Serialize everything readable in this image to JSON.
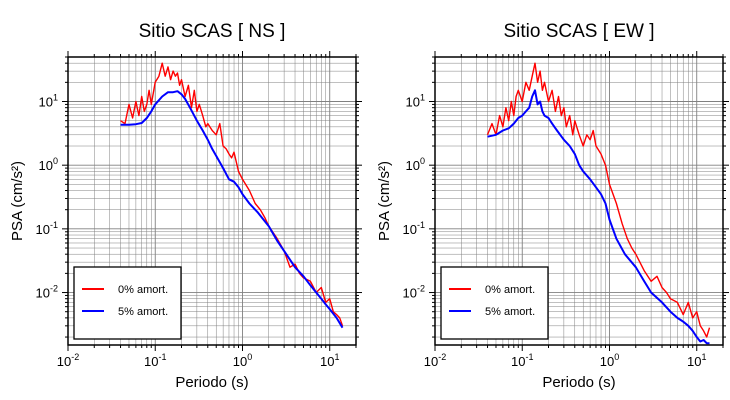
{
  "chart_data": [
    {
      "type": "line",
      "title": "Sitio SCAS [ NS ]",
      "xlabel": "Periodo (s)",
      "ylabel": "PSA (cm/s²)",
      "xscale": "log",
      "yscale": "log",
      "xlim": [
        0.01,
        20
      ],
      "ylim": [
        0.0015,
        50
      ],
      "xticks": [
        {
          "base": "10",
          "exp": "-2",
          "value": 0.01
        },
        {
          "base": "10",
          "exp": "-1",
          "value": 0.1
        },
        {
          "base": "10",
          "exp": "0",
          "value": 1
        },
        {
          "base": "10",
          "exp": "1",
          "value": 10
        }
      ],
      "yticks": [
        {
          "base": "10",
          "exp": "-2",
          "value": 0.01
        },
        {
          "base": "10",
          "exp": "-1",
          "value": 0.1
        },
        {
          "base": "10",
          "exp": "0",
          "value": 1
        },
        {
          "base": "10",
          "exp": "1",
          "value": 10
        }
      ],
      "grid": true,
      "legend_position": "bottom-left",
      "series": [
        {
          "name": "0% amort.",
          "color": "#ff0000",
          "x": [
            0.04,
            0.045,
            0.05,
            0.055,
            0.06,
            0.065,
            0.07,
            0.075,
            0.08,
            0.085,
            0.09,
            0.1,
            0.11,
            0.12,
            0.13,
            0.14,
            0.15,
            0.16,
            0.17,
            0.18,
            0.19,
            0.2,
            0.22,
            0.24,
            0.26,
            0.28,
            0.3,
            0.32,
            0.35,
            0.38,
            0.4,
            0.45,
            0.5,
            0.55,
            0.6,
            0.65,
            0.7,
            0.75,
            0.8,
            0.9,
            1.0,
            1.2,
            1.4,
            1.6,
            1.8,
            2.0,
            2.5,
            3.0,
            3.5,
            4.0,
            4.5,
            5.0,
            6.0,
            7.0,
            8.0,
            9.0,
            10.0,
            11.0,
            12.0,
            13.0,
            14.0
          ],
          "y": [
            5.0,
            4.5,
            9.0,
            5.5,
            10.0,
            6.0,
            12.0,
            7.0,
            9.0,
            15.0,
            9.0,
            20.0,
            25.0,
            40.0,
            25.0,
            35.0,
            22.0,
            30.0,
            25.0,
            28.0,
            18.0,
            22.0,
            12.0,
            18.0,
            8.0,
            15.0,
            7.0,
            9.0,
            6.0,
            4.0,
            4.5,
            3.5,
            3.0,
            4.5,
            2.0,
            1.8,
            1.5,
            1.3,
            1.6,
            0.8,
            0.6,
            0.4,
            0.25,
            0.2,
            0.15,
            0.11,
            0.07,
            0.045,
            0.025,
            0.028,
            0.02,
            0.017,
            0.015,
            0.01,
            0.012,
            0.007,
            0.008,
            0.005,
            0.0045,
            0.004,
            0.003
          ]
        },
        {
          "name": "5% amort.",
          "color": "#0000ff",
          "x": [
            0.04,
            0.05,
            0.06,
            0.07,
            0.08,
            0.09,
            0.1,
            0.12,
            0.14,
            0.16,
            0.18,
            0.2,
            0.22,
            0.25,
            0.3,
            0.35,
            0.4,
            0.45,
            0.5,
            0.6,
            0.7,
            0.8,
            0.9,
            1.0,
            1.2,
            1.5,
            2.0,
            2.5,
            3.0,
            4.0,
            5.0,
            6.0,
            7.0,
            8.0,
            9.0,
            10.0,
            12.0,
            14.0
          ],
          "y": [
            4.3,
            4.3,
            4.4,
            4.6,
            5.5,
            7.0,
            9.0,
            12.0,
            14.0,
            14.0,
            14.5,
            13.0,
            11.0,
            8.0,
            5.0,
            3.5,
            2.5,
            1.8,
            1.4,
            0.9,
            0.6,
            0.55,
            0.45,
            0.35,
            0.25,
            0.18,
            0.11,
            0.065,
            0.045,
            0.025,
            0.018,
            0.013,
            0.01,
            0.008,
            0.0065,
            0.0055,
            0.004,
            0.0028
          ]
        }
      ]
    },
    {
      "type": "line",
      "title": "Sitio SCAS [ EW ]",
      "xlabel": "Periodo (s)",
      "ylabel": "PSA (cm/s²)",
      "xscale": "log",
      "yscale": "log",
      "xlim": [
        0.01,
        20
      ],
      "ylim": [
        0.0015,
        50
      ],
      "xticks": [
        {
          "base": "10",
          "exp": "-2",
          "value": 0.01
        },
        {
          "base": "10",
          "exp": "-1",
          "value": 0.1
        },
        {
          "base": "10",
          "exp": "0",
          "value": 1
        },
        {
          "base": "10",
          "exp": "1",
          "value": 10
        }
      ],
      "yticks": [
        {
          "base": "10",
          "exp": "-2",
          "value": 0.01
        },
        {
          "base": "10",
          "exp": "-1",
          "value": 0.1
        },
        {
          "base": "10",
          "exp": "0",
          "value": 1
        },
        {
          "base": "10",
          "exp": "1",
          "value": 10
        }
      ],
      "grid": true,
      "legend_position": "bottom-left",
      "series": [
        {
          "name": "0% amort.",
          "color": "#ff0000",
          "x": [
            0.04,
            0.045,
            0.05,
            0.055,
            0.06,
            0.065,
            0.07,
            0.075,
            0.08,
            0.085,
            0.09,
            0.1,
            0.11,
            0.12,
            0.13,
            0.14,
            0.15,
            0.16,
            0.17,
            0.18,
            0.2,
            0.22,
            0.24,
            0.26,
            0.28,
            0.3,
            0.32,
            0.35,
            0.38,
            0.4,
            0.45,
            0.5,
            0.55,
            0.6,
            0.65,
            0.7,
            0.8,
            0.9,
            1.0,
            1.2,
            1.4,
            1.6,
            1.8,
            2.0,
            2.5,
            3.0,
            3.5,
            4.0,
            4.5,
            5.0,
            6.0,
            7.0,
            8.0,
            9.0,
            10.0,
            11.0,
            12.0,
            13.0,
            14.0
          ],
          "y": [
            3.0,
            4.5,
            3.0,
            6.0,
            4.0,
            8.0,
            5.0,
            10.0,
            6.0,
            12.0,
            15.0,
            10.0,
            20.0,
            15.0,
            25.0,
            40.0,
            20.0,
            30.0,
            15.0,
            20.0,
            10.0,
            15.0,
            7.0,
            12.0,
            6.0,
            8.0,
            4.0,
            6.0,
            3.0,
            5.0,
            3.0,
            2.0,
            3.0,
            2.5,
            3.5,
            2.0,
            1.5,
            1.0,
            0.5,
            0.25,
            0.12,
            0.07,
            0.05,
            0.04,
            0.022,
            0.015,
            0.018,
            0.012,
            0.01,
            0.008,
            0.007,
            0.0045,
            0.007,
            0.004,
            0.005,
            0.003,
            0.0025,
            0.002,
            0.0028
          ]
        },
        {
          "name": "5% amort.",
          "color": "#0000ff",
          "x": [
            0.04,
            0.05,
            0.06,
            0.07,
            0.08,
            0.09,
            0.1,
            0.11,
            0.12,
            0.13,
            0.14,
            0.15,
            0.16,
            0.17,
            0.18,
            0.2,
            0.22,
            0.25,
            0.3,
            0.35,
            0.4,
            0.45,
            0.5,
            0.6,
            0.7,
            0.8,
            0.9,
            1.0,
            1.2,
            1.5,
            2.0,
            2.5,
            3.0,
            4.0,
            5.0,
            6.0,
            7.0,
            8.0,
            9.0,
            10.0,
            11.0,
            12.0,
            13.0,
            14.0
          ],
          "y": [
            2.8,
            3.0,
            3.5,
            3.8,
            4.5,
            5.5,
            6.0,
            7.0,
            8.0,
            12.0,
            15.0,
            9.0,
            10.0,
            7.0,
            6.0,
            5.5,
            4.5,
            3.5,
            2.5,
            2.0,
            1.5,
            1.0,
            0.8,
            0.6,
            0.45,
            0.35,
            0.25,
            0.14,
            0.07,
            0.04,
            0.025,
            0.015,
            0.01,
            0.007,
            0.005,
            0.004,
            0.0035,
            0.003,
            0.0025,
            0.002,
            0.0017,
            0.0018,
            0.0016,
            0.0016
          ]
        }
      ]
    }
  ]
}
